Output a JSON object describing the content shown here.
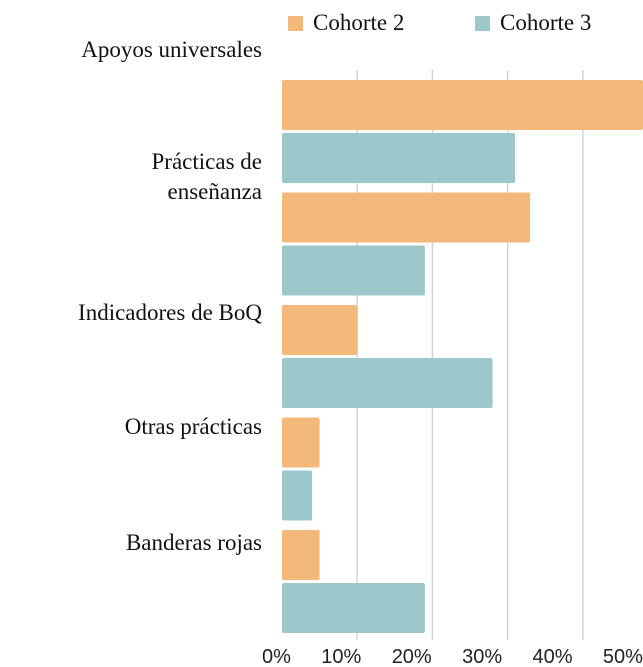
{
  "chart_data": {
    "type": "bar",
    "orientation": "horizontal",
    "categories": [
      "Apoyos  universales",
      "Prácticas de enseñanza",
      "Indicadores de BoQ",
      "Otras prácticas",
      "Banderas rojas"
    ],
    "series": [
      {
        "name": "Cohorte 2",
        "color": "#f2b97b",
        "values": [
          48,
          33,
          10,
          5,
          5
        ]
      },
      {
        "name": "Cohorte 3",
        "color": "#9cc8cb",
        "values": [
          31,
          19,
          28,
          4,
          19
        ]
      }
    ],
    "xlim": [
      0,
      48
    ],
    "xticks": [
      {
        "value": 0,
        "label": "0%"
      },
      {
        "value": 10,
        "label": "10%"
      },
      {
        "value": 20,
        "label": "20%"
      },
      {
        "value": 30,
        "label": "30%"
      },
      {
        "value": 40,
        "label": "40%"
      },
      {
        "value": 50,
        "label": "50%"
      }
    ],
    "grid": true,
    "legend": "top"
  }
}
